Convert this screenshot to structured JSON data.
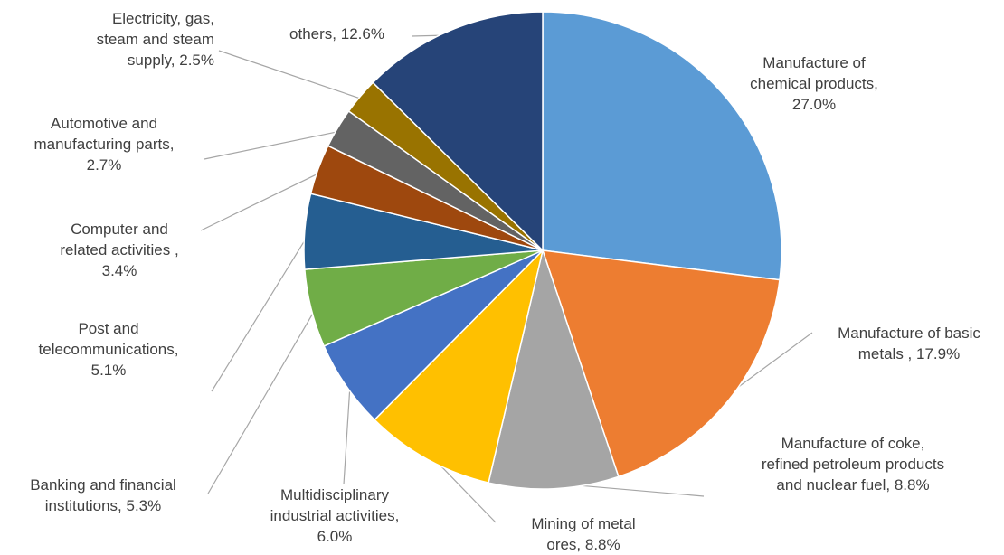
{
  "chart_data": {
    "type": "pie",
    "title": "",
    "start_angle_deg": 0,
    "direction": "clockwise",
    "slices": [
      {
        "label": "Manufacture of chemical products",
        "value": 27.0,
        "label_text": "Manufacture of\nchemical products,\n27.0%",
        "color": "#5B9BD5"
      },
      {
        "label": "Manufacture of basic metals",
        "value": 17.9,
        "label_text": "Manufacture of basic\nmetals , 17.9%",
        "color": "#ED7D31"
      },
      {
        "label": "Manufacture of coke, refined petroleum products and nuclear fuel",
        "value": 8.8,
        "label_text": "Manufacture of coke,\nrefined petroleum products\nand nuclear fuel, 8.8%",
        "color": "#A5A5A5"
      },
      {
        "label": "Mining of metal ores",
        "value": 8.8,
        "label_text": "Mining of metal\nores, 8.8%",
        "color": "#FFC000"
      },
      {
        "label": "Multidisciplinary industrial activities",
        "value": 6.0,
        "label_text": "Multidisciplinary\nindustrial activities,\n6.0%",
        "color": "#4472C4"
      },
      {
        "label": "Banking and financial institutions",
        "value": 5.3,
        "label_text": "Banking and financial\ninstitutions, 5.3%",
        "color": "#70AD47"
      },
      {
        "label": "Post and telecommunications",
        "value": 5.1,
        "label_text": "Post and\ntelecommunications,\n5.1%",
        "color": "#255E91"
      },
      {
        "label": "Computer and related activities",
        "value": 3.4,
        "label_text": "Computer and\nrelated activities ,\n3.4%",
        "color": "#9E480E"
      },
      {
        "label": "Automotive and manufacturing parts",
        "value": 2.7,
        "label_text": "Automotive and\nmanufacturing parts,\n2.7%",
        "color": "#636363"
      },
      {
        "label": "Electricity, gas, steam and steam supply",
        "value": 2.5,
        "label_text": "Electricity, gas,\nsteam and steam\nsupply, 2.5%",
        "color": "#997300"
      },
      {
        "label": "others",
        "value": 12.6,
        "label_text": "others, 12.6%",
        "color": "#264478"
      }
    ]
  }
}
